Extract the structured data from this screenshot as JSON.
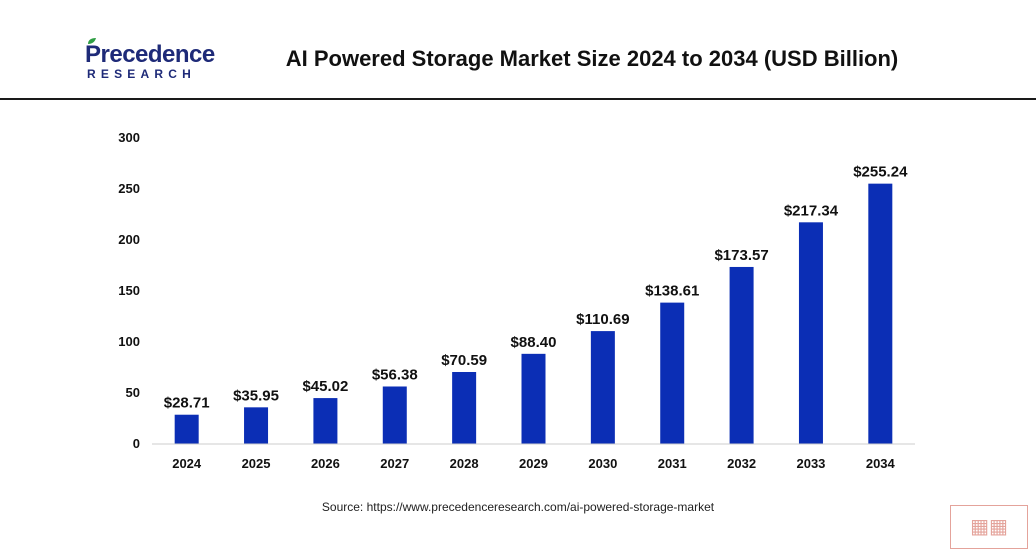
{
  "header": {
    "logo_line1": "Precedence",
    "logo_line2": "RESEARCH",
    "title": "AI Powered Storage Market Size 2024 to 2034 (USD Billion)"
  },
  "source": "Source: https://www.precedenceresearch.com/ai-powered-storage-market",
  "colors": {
    "bar": "#0b2eb5",
    "text": "#111111",
    "axis": "#cccccc",
    "logo": "#1e2a78"
  },
  "chart_data": {
    "type": "bar",
    "title": "AI Powered Storage Market Size 2024 to 2034 (USD Billion)",
    "xlabel": "",
    "ylabel": "",
    "categories": [
      "2024",
      "2025",
      "2026",
      "2027",
      "2028",
      "2029",
      "2030",
      "2031",
      "2032",
      "2033",
      "2034"
    ],
    "values": [
      28.71,
      35.95,
      45.02,
      56.38,
      70.59,
      88.4,
      110.69,
      138.61,
      173.57,
      217.34,
      255.24
    ],
    "data_labels": [
      "$28.71",
      "$35.95",
      "$45.02",
      "$56.38",
      "$70.59",
      "$88.40",
      "$110.69",
      "$138.61",
      "$173.57",
      "$217.34",
      "$255.24"
    ],
    "ylim": [
      0,
      300
    ],
    "yticks": [
      0,
      50,
      100,
      150,
      200,
      250,
      300
    ],
    "grid": false,
    "legend": "none"
  }
}
